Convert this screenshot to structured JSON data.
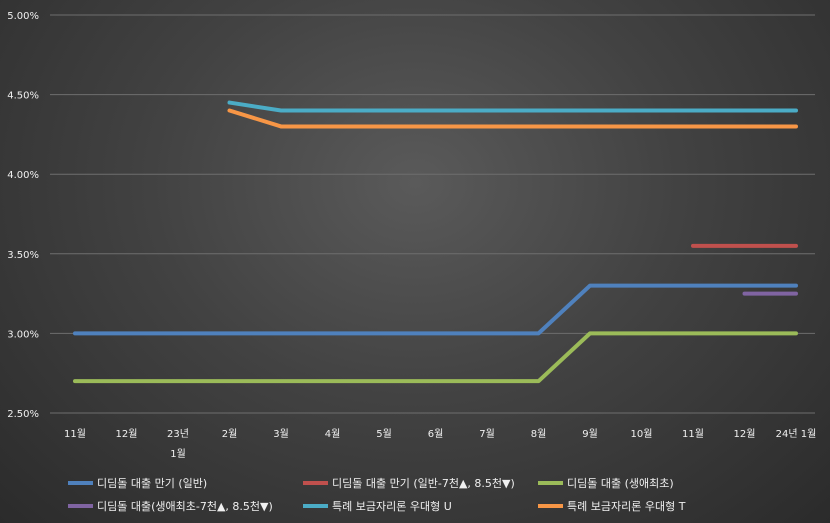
{
  "chart_data": {
    "type": "line",
    "title": "",
    "xlabel": "",
    "ylabel": "",
    "ylim": [
      0.025,
      0.05
    ],
    "yticks": [
      "2.50%",
      "3.00%",
      "3.50%",
      "4.00%",
      "4.50%",
      "5.00%"
    ],
    "ytick_values": [
      0.025,
      0.03,
      0.035,
      0.04,
      0.045,
      0.05
    ],
    "categories": [
      "11월",
      "12월",
      "23년 1월",
      "2월",
      "3월",
      "4월",
      "5월",
      "6월",
      "7월",
      "8월",
      "9월",
      "10월",
      "11월",
      "12월",
      "24년 1월"
    ],
    "category_lines": [
      [
        "11월"
      ],
      [
        "12월"
      ],
      [
        "23년",
        "1월"
      ],
      [
        "2월"
      ],
      [
        "3월"
      ],
      [
        "4월"
      ],
      [
        "5월"
      ],
      [
        "6월"
      ],
      [
        "7월"
      ],
      [
        "8월"
      ],
      [
        "9월"
      ],
      [
        "10월"
      ],
      [
        "11월"
      ],
      [
        "12월"
      ],
      [
        "24년 1월"
      ]
    ],
    "grid": true,
    "legend_position": "bottom",
    "series": [
      {
        "name": "디딤돌 대출 만기 (일반)",
        "color": "#4f81bd",
        "values": [
          0.03,
          0.03,
          0.03,
          0.03,
          0.03,
          0.03,
          0.03,
          0.03,
          0.03,
          0.03,
          0.033,
          0.033,
          0.033,
          0.033,
          0.033
        ]
      },
      {
        "name": "디딤돌 대출 만기 (일반-7천▲, 8.5천▼)",
        "color": "#c0504d",
        "values": [
          null,
          null,
          null,
          null,
          null,
          null,
          null,
          null,
          null,
          null,
          null,
          null,
          0.0355,
          0.0355,
          0.0355
        ]
      },
      {
        "name": "디딤돌 대출 (생애최초)",
        "color": "#9bbb59",
        "values": [
          0.027,
          0.027,
          0.027,
          0.027,
          0.027,
          0.027,
          0.027,
          0.027,
          0.027,
          0.027,
          0.03,
          0.03,
          0.03,
          0.03,
          0.03
        ]
      },
      {
        "name": "디딤돌 대출(생애최초-7천▲, 8.5천▼)",
        "color": "#8064a2",
        "values": [
          null,
          null,
          null,
          null,
          null,
          null,
          null,
          null,
          null,
          null,
          null,
          null,
          null,
          0.0325,
          0.0325
        ]
      },
      {
        "name": "특례 보금자리론 우대형 U",
        "color": "#4bacc6",
        "values": [
          null,
          null,
          null,
          0.0445,
          0.044,
          0.044,
          0.044,
          0.044,
          0.044,
          0.044,
          0.044,
          0.044,
          0.044,
          0.044,
          0.044
        ]
      },
      {
        "name": "특례 보금자리론 우대형 T",
        "color": "#f79646",
        "values": [
          null,
          null,
          null,
          0.044,
          0.043,
          0.043,
          0.043,
          0.043,
          0.043,
          0.043,
          0.043,
          0.043,
          0.043,
          0.043,
          0.043
        ]
      }
    ]
  }
}
